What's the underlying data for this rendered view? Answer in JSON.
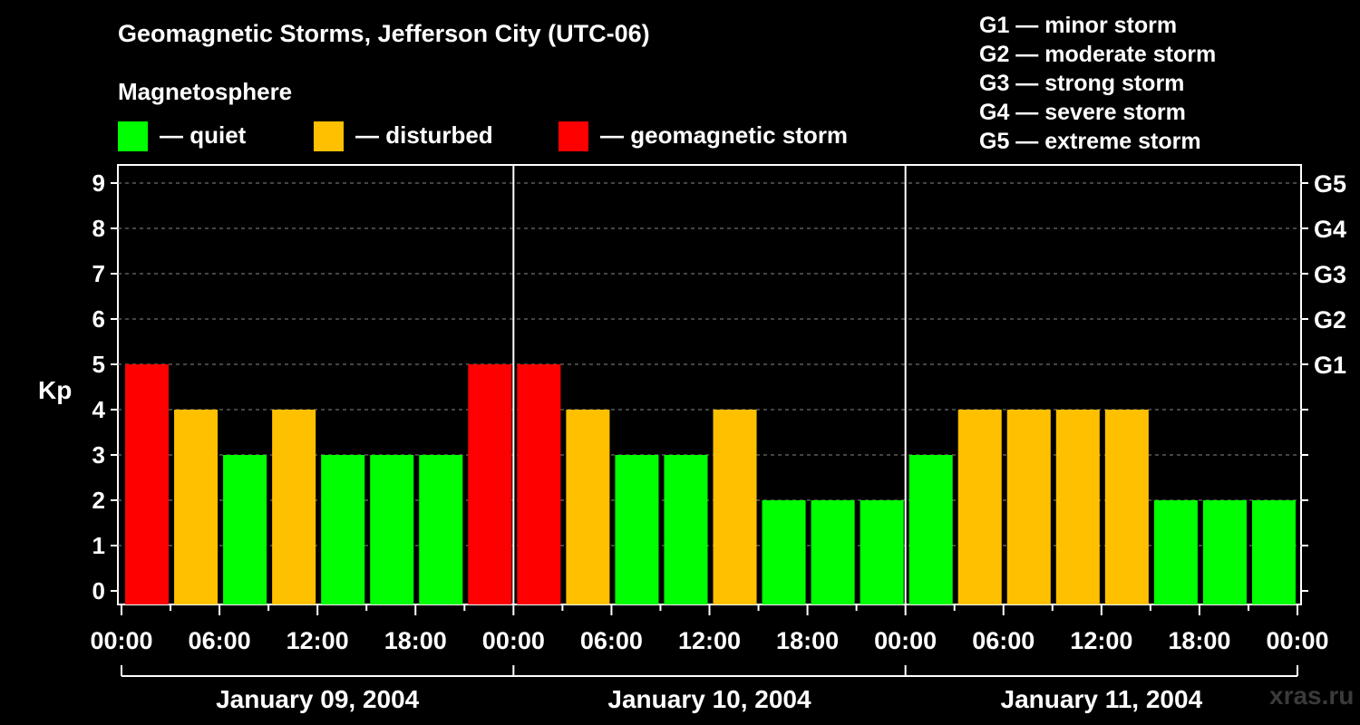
{
  "title": "Geomagnetic Storms, Jefferson City (UTC-06)",
  "subtitle": "Magnetosphere",
  "legend": [
    {
      "label": "— quiet",
      "color": "#00ff00"
    },
    {
      "label": "— disturbed",
      "color": "#ffc000"
    },
    {
      "label": "— geomagnetic storm",
      "color": "#ff0000"
    }
  ],
  "g_scale": [
    "G1 — minor storm",
    "G2 — moderate storm",
    "G3 — strong storm",
    "G4 — severe storm",
    "G5 — extreme storm"
  ],
  "watermark": "xras.ru",
  "chart_data": {
    "type": "bar",
    "ylabel": "Kp",
    "ylim": [
      0,
      9
    ],
    "yticks": [
      0,
      1,
      2,
      3,
      4,
      5,
      6,
      7,
      8,
      9
    ],
    "right_axis_labels": [
      {
        "kp": 5,
        "label": "G1"
      },
      {
        "kp": 6,
        "label": "G2"
      },
      {
        "kp": 7,
        "label": "G3"
      },
      {
        "kp": 8,
        "label": "G4"
      },
      {
        "kp": 9,
        "label": "G5"
      }
    ],
    "x_tick_labels": [
      "00:00",
      "06:00",
      "12:00",
      "18:00",
      "00:00",
      "06:00",
      "12:00",
      "18:00",
      "00:00",
      "06:00",
      "12:00",
      "18:00",
      "00:00"
    ],
    "days": [
      "January 09, 2004",
      "January 10, 2004",
      "January 11, 2004"
    ],
    "values": [
      5,
      4,
      3,
      4,
      3,
      3,
      3,
      5,
      5,
      4,
      3,
      3,
      4,
      2,
      2,
      2,
      3,
      4,
      4,
      4,
      4,
      2,
      2,
      2
    ],
    "color_rule": {
      "quiet_max": 3,
      "disturbed": 4,
      "storm_min": 5
    },
    "colors": {
      "quiet": "#00ff00",
      "disturbed": "#ffc000",
      "storm": "#ff0000",
      "grid": "#888888",
      "axis": "#ffffff"
    },
    "grid": true
  }
}
